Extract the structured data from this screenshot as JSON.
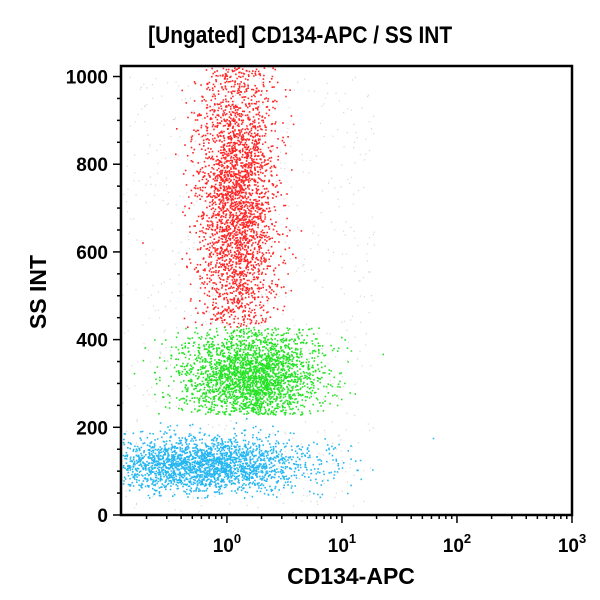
{
  "chart_data": {
    "type": "scatter",
    "title": "[Ungated] CD134-APC / SS INT",
    "xlabel": "CD134-APC",
    "ylabel": "SS INT",
    "xscale": "log",
    "xlim": [
      0.12,
      1000
    ],
    "ylim": [
      0,
      1024
    ],
    "x_ticks": [
      {
        "base": "10",
        "exp": "0",
        "value": 1
      },
      {
        "base": "10",
        "exp": "1",
        "value": 10
      },
      {
        "base": "10",
        "exp": "2",
        "value": 100
      },
      {
        "base": "10",
        "exp": "3",
        "value": 1000
      }
    ],
    "y_ticks": [
      "0",
      "200",
      "400",
      "600",
      "800",
      "1000"
    ],
    "grid": false,
    "legend": "none",
    "series": [
      {
        "color": "#ff0000",
        "n": 9000,
        "x_center": 1.2,
        "x_log_sd": 0.17,
        "y_center": 720,
        "y_sd": 170,
        "y_min": 430,
        "y_max": 1024
      },
      {
        "color": "#00dd00",
        "n": 3200,
        "x_center": 1.6,
        "x_log_sd": 0.3,
        "y_center": 320,
        "y_sd": 55,
        "y_min": 230,
        "y_max": 430
      },
      {
        "color": "#00aaee",
        "n": 5500,
        "x_center": 0.6,
        "x_log_sd": 0.35,
        "y_center": 115,
        "y_sd": 32,
        "y_min": 40,
        "y_max": 230
      }
    ]
  }
}
